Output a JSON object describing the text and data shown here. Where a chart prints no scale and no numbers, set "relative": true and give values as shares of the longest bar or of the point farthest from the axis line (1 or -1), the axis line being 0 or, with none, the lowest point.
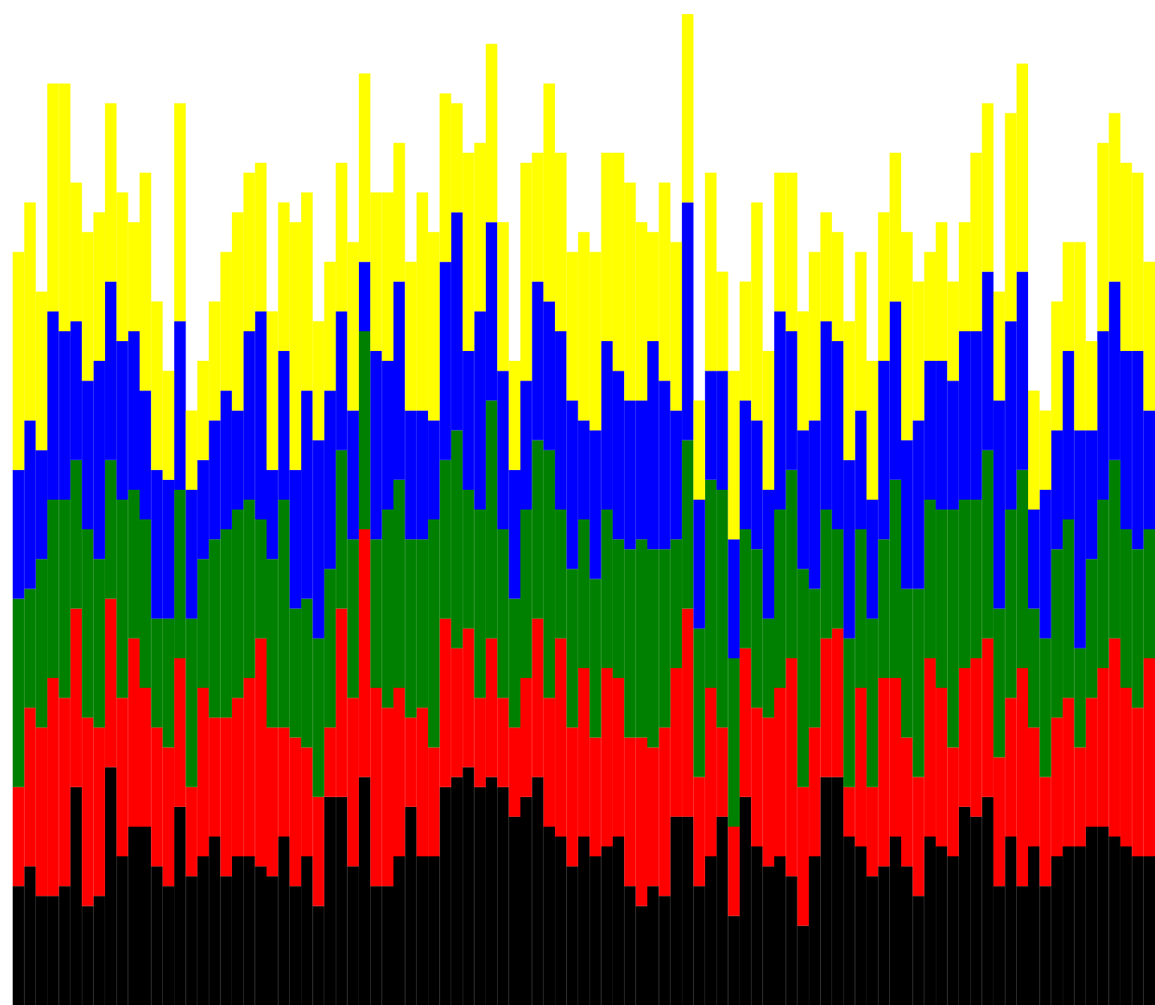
{
  "chart_data": {
    "type": "bar",
    "stacked": true,
    "relative": true,
    "categories": [
      null,
      null,
      null,
      null,
      null,
      null,
      null,
      null,
      null,
      null,
      null,
      null,
      null,
      null,
      null,
      null,
      null,
      null,
      null,
      null,
      null,
      null,
      null,
      null,
      null,
      null,
      null,
      null,
      null,
      null,
      null,
      null,
      null,
      null,
      null,
      null,
      null,
      null,
      null,
      null,
      null,
      null,
      null,
      null,
      null,
      null,
      null,
      null,
      null,
      null,
      null,
      null,
      null,
      null,
      null,
      null,
      null,
      null,
      null,
      null,
      null,
      null,
      null,
      null,
      null,
      null,
      null,
      null,
      null,
      null,
      null,
      null,
      null,
      null,
      null,
      null,
      null,
      null,
      null,
      null,
      null,
      null,
      null,
      null,
      null,
      null,
      null,
      null,
      null,
      null,
      null,
      null,
      null,
      null,
      null,
      null,
      null,
      null,
      null
    ],
    "series": [
      {
        "color": "#000000",
        "values": [
          0.12,
          0.14,
          0.11,
          0.11,
          0.12,
          0.22,
          0.1,
          0.11,
          0.24,
          0.15,
          0.18,
          0.18,
          0.14,
          0.12,
          0.2,
          0.13,
          0.15,
          0.17,
          0.13,
          0.15,
          0.15,
          0.14,
          0.13,
          0.17,
          0.12,
          0.15,
          0.1,
          0.21,
          0.21,
          0.14,
          0.23,
          0.12,
          0.12,
          0.15,
          0.2,
          0.15,
          0.15,
          0.22,
          0.23,
          0.24,
          0.22,
          0.23,
          0.22,
          0.19,
          0.21,
          0.23,
          0.18,
          0.17,
          0.14,
          0.17,
          0.15,
          0.16,
          0.17,
          0.12,
          0.1,
          0.12,
          0.11,
          0.19,
          0.19,
          0.12,
          0.15,
          0.19,
          0.09,
          0.21,
          0.16,
          0.14,
          0.15,
          0.13,
          0.08,
          0.15,
          0.23,
          0.23,
          0.17,
          0.16,
          0.13,
          0.14,
          0.17,
          0.14,
          0.11,
          0.17,
          0.16,
          0.15,
          0.2,
          0.19,
          0.21,
          0.12,
          0.17,
          0.12,
          0.16,
          0.12,
          0.15,
          0.16,
          0.16,
          0.18,
          0.18,
          0.17,
          0.16,
          0.15,
          0.15
        ]
      },
      {
        "color": "#ff0000",
        "values": [
          0.1,
          0.16,
          0.17,
          0.22,
          0.19,
          0.18,
          0.19,
          0.17,
          0.17,
          0.16,
          0.19,
          0.14,
          0.14,
          0.14,
          0.15,
          0.09,
          0.17,
          0.12,
          0.16,
          0.16,
          0.18,
          0.23,
          0.15,
          0.11,
          0.15,
          0.11,
          0.11,
          0.07,
          0.19,
          0.17,
          0.25,
          0.2,
          0.18,
          0.17,
          0.09,
          0.15,
          0.11,
          0.17,
          0.13,
          0.14,
          0.09,
          0.14,
          0.09,
          0.09,
          0.12,
          0.16,
          0.13,
          0.2,
          0.14,
          0.17,
          0.12,
          0.18,
          0.16,
          0.15,
          0.17,
          0.14,
          0.17,
          0.15,
          0.21,
          0.11,
          0.17,
          0.09,
          0.09,
          0.15,
          0.14,
          0.15,
          0.17,
          0.22,
          0.14,
          0.13,
          0.14,
          0.15,
          0.05,
          0.16,
          0.09,
          0.19,
          0.16,
          0.13,
          0.12,
          0.18,
          0.16,
          0.11,
          0.14,
          0.16,
          0.16,
          0.13,
          0.14,
          0.22,
          0.12,
          0.11,
          0.14,
          0.15,
          0.1,
          0.13,
          0.16,
          0.2,
          0.16,
          0.15,
          0.2
        ]
      },
      {
        "color": "#008000",
        "values": [
          0.19,
          0.12,
          0.17,
          0.18,
          0.2,
          0.15,
          0.19,
          0.17,
          0.14,
          0.2,
          0.15,
          0.17,
          0.11,
          0.13,
          0.17,
          0.17,
          0.13,
          0.18,
          0.19,
          0.19,
          0.18,
          0.12,
          0.17,
          0.23,
          0.13,
          0.15,
          0.16,
          0.16,
          0.16,
          0.16,
          0.2,
          0.15,
          0.2,
          0.21,
          0.18,
          0.17,
          0.23,
          0.16,
          0.22,
          0.14,
          0.19,
          0.24,
          0.17,
          0.13,
          0.17,
          0.18,
          0.25,
          0.13,
          0.16,
          0.15,
          0.16,
          0.16,
          0.14,
          0.19,
          0.2,
          0.2,
          0.18,
          0.13,
          0.17,
          0.15,
          0.21,
          0.24,
          0.17,
          0.12,
          0.16,
          0.1,
          0.18,
          0.19,
          0.22,
          0.14,
          0.13,
          0.1,
          0.15,
          0.16,
          0.17,
          0.14,
          0.2,
          0.15,
          0.19,
          0.16,
          0.18,
          0.24,
          0.17,
          0.16,
          0.19,
          0.15,
          0.19,
          0.2,
          0.12,
          0.14,
          0.17,
          0.18,
          0.1,
          0.14,
          0.17,
          0.18,
          0.16,
          0.16,
          0.13
        ]
      },
      {
        "color": "#0000ff",
        "values": [
          0.13,
          0.17,
          0.11,
          0.19,
          0.17,
          0.14,
          0.15,
          0.2,
          0.18,
          0.16,
          0.16,
          0.13,
          0.15,
          0.14,
          0.17,
          0.13,
          0.1,
          0.12,
          0.14,
          0.1,
          0.17,
          0.21,
          0.09,
          0.15,
          0.14,
          0.21,
          0.2,
          0.18,
          0.14,
          0.13,
          0.07,
          0.19,
          0.15,
          0.2,
          0.13,
          0.13,
          0.1,
          0.2,
          0.22,
          0.14,
          0.2,
          0.18,
          0.16,
          0.13,
          0.13,
          0.16,
          0.15,
          0.18,
          0.17,
          0.1,
          0.15,
          0.17,
          0.17,
          0.15,
          0.14,
          0.21,
          0.17,
          0.13,
          0.24,
          0.13,
          0.11,
          0.12,
          0.12,
          0.13,
          0.13,
          0.13,
          0.2,
          0.14,
          0.14,
          0.17,
          0.19,
          0.19,
          0.18,
          0.12,
          0.12,
          0.18,
          0.18,
          0.15,
          0.17,
          0.14,
          0.15,
          0.13,
          0.17,
          0.17,
          0.18,
          0.21,
          0.19,
          0.2,
          0.1,
          0.15,
          0.12,
          0.17,
          0.22,
          0.13,
          0.17,
          0.18,
          0.18,
          0.2,
          0.12
        ]
      },
      {
        "color": "#ffff00",
        "values": [
          0.22,
          0.22,
          0.16,
          0.23,
          0.25,
          0.14,
          0.15,
          0.15,
          0.18,
          0.15,
          0.11,
          0.22,
          0.17,
          0.11,
          0.22,
          0.08,
          0.1,
          0.12,
          0.14,
          0.2,
          0.16,
          0.15,
          0.16,
          0.15,
          0.25,
          0.2,
          0.12,
          0.13,
          0.15,
          0.17,
          0.19,
          0.16,
          0.17,
          0.14,
          0.15,
          0.22,
          0.19,
          0.17,
          0.11,
          0.2,
          0.17,
          0.18,
          0.15,
          0.11,
          0.22,
          0.13,
          0.22,
          0.18,
          0.15,
          0.19,
          0.18,
          0.19,
          0.22,
          0.22,
          0.18,
          0.11,
          0.2,
          0.17,
          0.19,
          0.1,
          0.2,
          0.1,
          0.17,
          0.12,
          0.22,
          0.14,
          0.14,
          0.16,
          0.12,
          0.17,
          0.11,
          0.11,
          0.14,
          0.16,
          0.14,
          0.15,
          0.15,
          0.21,
          0.14,
          0.11,
          0.14,
          0.1,
          0.11,
          0.18,
          0.17,
          0.11,
          0.21,
          0.21,
          0.12,
          0.08,
          0.13,
          0.11,
          0.19,
          0.09,
          0.19,
          0.17,
          0.19,
          0.18,
          0.15
        ]
      }
    ]
  }
}
